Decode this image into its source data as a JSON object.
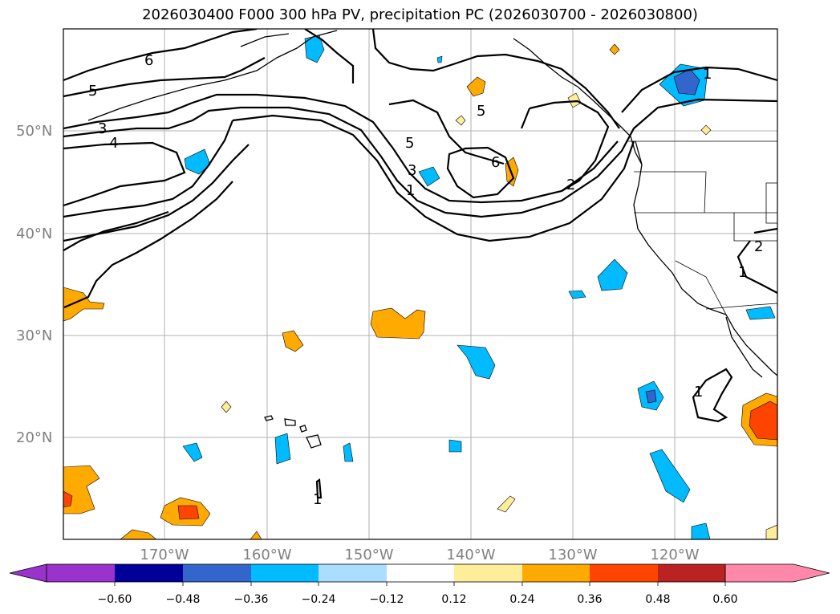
{
  "title": "2026030400 F000 300 hPa PV, precipitation PC (2026030700 - 2026030800)",
  "map": {
    "lat_labels": [
      "50°N",
      "40°N",
      "30°N",
      "20°N"
    ],
    "lon_labels": [
      "170°W",
      "160°W",
      "150°W",
      "140°W",
      "130°W",
      "120°W"
    ],
    "contour_labels": [
      "6",
      "5",
      "3",
      "4",
      "5",
      "3",
      "1",
      "5",
      "6",
      "2",
      "1",
      "2",
      "1",
      "1",
      "1"
    ]
  },
  "colorbar": {
    "tick_labels": [
      "−0.60",
      "−0.48",
      "−0.36",
      "−0.24",
      "−0.12",
      "0.12",
      "0.24",
      "0.36",
      "0.48",
      "0.60"
    ],
    "colors": [
      "#9933cc",
      "#000099",
      "#3366cc",
      "#00bbff",
      "#aaddff",
      "#ffffff",
      "#ffee99",
      "#ffaa00",
      "#ff4400",
      "#bb2222",
      "#ff88aa"
    ]
  }
}
